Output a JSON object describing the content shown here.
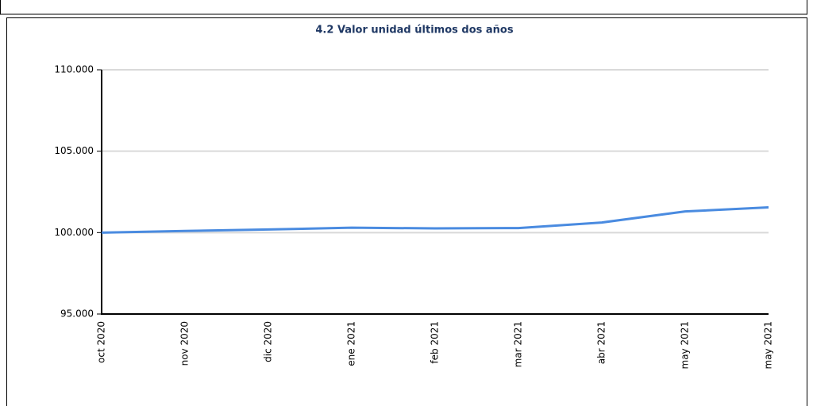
{
  "chart_data": {
    "type": "line",
    "title": "4.2 Valor unidad últimos dos años",
    "categories": [
      "oct 2020",
      "nov 2020",
      "dic 2020",
      "ene 2021",
      "feb 2021",
      "mar 2021",
      "abr 2021",
      "may 2021",
      "may 2021"
    ],
    "series": [
      {
        "color": "#4a8be0",
        "values": [
          100.0,
          100.1,
          100.19,
          100.3,
          100.26,
          100.28,
          100.62,
          101.3,
          101.55
        ]
      }
    ],
    "ylim": [
      95,
      110
    ],
    "yticks": [
      {
        "value": 95,
        "label": "95.000"
      },
      {
        "value": 100,
        "label": "100.000"
      },
      {
        "value": 105,
        "label": "105.000"
      },
      {
        "value": 110,
        "label": "110.000"
      }
    ],
    "grid": true
  }
}
